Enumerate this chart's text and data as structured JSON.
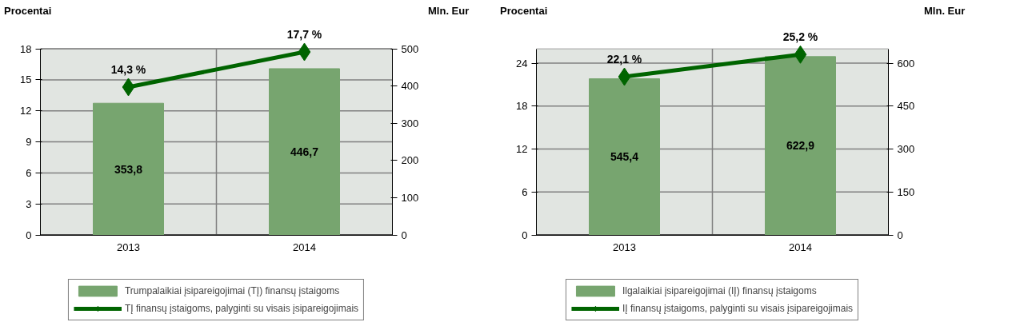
{
  "chart_data": [
    {
      "type": "bar",
      "categories": [
        "2013",
        "2014"
      ],
      "ylabel": "Procentai",
      "y2label": "Mln. Eur",
      "ylim": [
        0,
        18
      ],
      "yticks": [
        0,
        3,
        6,
        9,
        12,
        15,
        18
      ],
      "y2lim": [
        0,
        500
      ],
      "y2ticks": [
        0,
        100,
        200,
        300,
        400,
        500
      ],
      "grid": true,
      "legend": "bottom",
      "series": [
        {
          "name": "Trumpalaikiai įsipareigojimai (TĮ) finansų įstaigoms",
          "axis": "y2",
          "color": "#77a56f",
          "values": [
            353.8,
            446.7
          ],
          "value_labels": [
            "353,8",
            "446,7"
          ]
        },
        {
          "name": "TĮ finansų įstaigoms, palyginti su visais įsipareigojimais",
          "type": "line",
          "axis": "y",
          "color": "#006400",
          "marker": "diamond",
          "values": [
            14.3,
            17.7
          ],
          "value_labels": [
            "14,3 %",
            "17,7 %"
          ]
        }
      ]
    },
    {
      "type": "bar",
      "categories": [
        "2013",
        "2014"
      ],
      "ylabel": "Procentai",
      "y2label": "Mln. Eur",
      "ylim": [
        0,
        26
      ],
      "yticks": [
        0,
        6,
        12,
        18,
        24
      ],
      "y2lim": [
        0,
        650
      ],
      "y2ticks": [
        0,
        150,
        300,
        450,
        600
      ],
      "grid": true,
      "legend": "bottom",
      "series": [
        {
          "name": "Ilgalaikiai įsipareigojimai (IĮ) finansų įstaigoms",
          "axis": "y2",
          "color": "#77a56f",
          "values": [
            545.4,
            622.9
          ],
          "value_labels": [
            "545,4",
            "622,9"
          ]
        },
        {
          "name": "IĮ finansų įstaigoms, palyginti su visais įsipareigojimais",
          "type": "line",
          "axis": "y",
          "color": "#006400",
          "marker": "diamond",
          "values": [
            22.1,
            25.2
          ],
          "value_labels": [
            "22,1 %",
            "25,2 %"
          ]
        }
      ]
    }
  ]
}
